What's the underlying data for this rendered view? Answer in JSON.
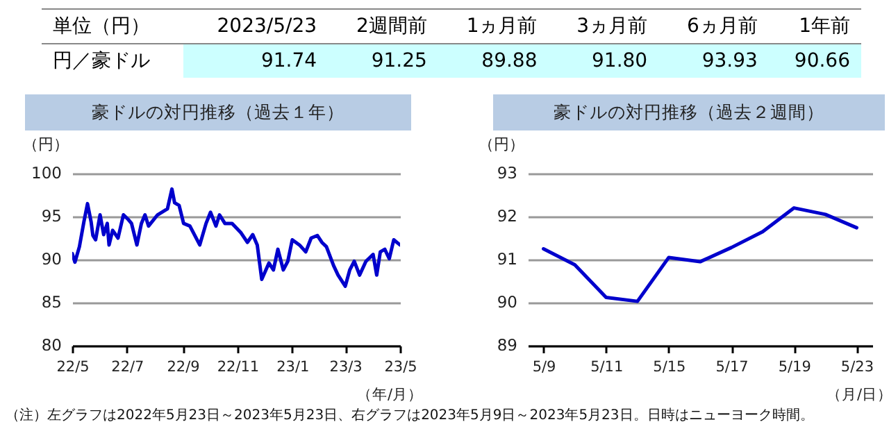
{
  "chart_data": [
    {
      "type": "other",
      "xlabel": "単位（円）",
      "ylabel": "円／豪ドル",
      "categories": [
        "2023/5/23",
        "2週間前",
        "1ヵ月前",
        "3ヵ月前",
        "6ヵ月前",
        "1年前"
      ],
      "value_labels": [
        "91.74",
        "91.25",
        "89.88",
        "91.80",
        "93.93",
        "90.66"
      ]
    },
    {
      "type": "line",
      "title": "豪ドルの対円推移（過去１年）",
      "ylabel": "（円）",
      "xlabel": "（年/月）",
      "x": [
        "2022-05-23",
        "2022-05-26",
        "2022-05-31",
        "2022-06-05",
        "2022-06-09",
        "2022-06-13",
        "2022-06-15",
        "2022-06-18",
        "2022-06-23",
        "2022-06-27",
        "2022-07-01",
        "2022-07-03",
        "2022-07-07",
        "2022-07-13",
        "2022-07-19",
        "2022-07-24",
        "2022-07-28",
        "2022-08-03",
        "2022-08-08",
        "2022-08-12",
        "2022-08-16",
        "2022-08-26",
        "2022-09-06",
        "2022-09-11",
        "2022-09-14",
        "2022-09-19",
        "2022-09-24",
        "2022-10-01",
        "2022-10-12",
        "2022-10-19",
        "2022-10-24",
        "2022-10-30",
        "2022-11-03",
        "2022-11-09",
        "2022-11-17",
        "2022-11-27",
        "2022-12-04",
        "2022-12-10",
        "2022-12-15",
        "2022-12-20",
        "2022-12-28",
        "2023-01-02",
        "2023-01-07",
        "2023-01-13",
        "2023-01-18",
        "2023-01-23",
        "2023-01-31",
        "2023-02-07",
        "2023-02-13",
        "2023-02-20",
        "2023-02-25",
        "2023-03-02",
        "2023-03-10",
        "2023-03-15",
        "2023-03-23",
        "2023-03-28",
        "2023-04-02",
        "2023-04-08",
        "2023-04-15",
        "2023-04-23",
        "2023-04-27",
        "2023-05-01",
        "2023-05-06",
        "2023-05-11",
        "2023-05-16",
        "2023-05-23"
      ],
      "series": [
        {
          "color": "#0000cc",
          "values": [
            90.7,
            89.7,
            91.5,
            94.4,
            96.5,
            94.4,
            92.8,
            92.3,
            95.2,
            92.9,
            94.2,
            91.7,
            93.4,
            92.5,
            95.2,
            94.7,
            94.2,
            91.7,
            94.2,
            95.2,
            93.9,
            95.2,
            95.9,
            98.2,
            96.6,
            96.3,
            94.2,
            93.9,
            91.7,
            94.2,
            95.5,
            93.9,
            95.2,
            94.2,
            94.2,
            93.1,
            92.0,
            92.9,
            91.7,
            87.7,
            89.6,
            88.8,
            91.2,
            88.8,
            89.8,
            92.3,
            91.7,
            90.9,
            92.5,
            92.8,
            92.0,
            91.5,
            89.3,
            88.2,
            86.9,
            88.8,
            89.8,
            88.2,
            89.8,
            90.6,
            88.2,
            90.9,
            91.2,
            90.1,
            92.3,
            91.7
          ]
        }
      ],
      "xlim": [
        "2022-05-23",
        "2023-05-23"
      ],
      "xticks": [
        {
          "value": "2022-05-23",
          "label": "22/5"
        },
        {
          "value": "2022-07-23",
          "label": "22/7"
        },
        {
          "value": "2022-09-23",
          "label": "22/9"
        },
        {
          "value": "2022-11-23",
          "label": "22/11"
        },
        {
          "value": "2023-01-23",
          "label": "23/1"
        },
        {
          "value": "2023-03-23",
          "label": "23/3"
        },
        {
          "value": "2023-05-23",
          "label": "23/5"
        }
      ],
      "ylim": [
        80,
        100
      ],
      "yticks": [
        80,
        85,
        90,
        95,
        100
      ],
      "grid": "y"
    },
    {
      "type": "line",
      "title": "豪ドルの対円推移（過去２週間）",
      "ylabel": "（円）",
      "xlabel": "（月/日）",
      "categories": [
        "5/9",
        null,
        "5/11",
        null,
        "5/15",
        null,
        "5/17",
        null,
        "5/19",
        null,
        "5/23"
      ],
      "series": [
        {
          "color": "#0000cc",
          "values": [
            91.25,
            90.88,
            90.12,
            90.03,
            91.05,
            90.95,
            91.28,
            91.65,
            92.2,
            92.05,
            91.74
          ]
        }
      ],
      "ylim": [
        89,
        93
      ],
      "yticks": [
        89,
        90,
        91,
        92,
        93
      ],
      "grid": "y",
      "annotations": [
        "（注）左グラフは2022年5月23日～2023年5月23日、右グラフは2023年5月9日～2023年5月23日。日時はニューヨーク時間。"
      ]
    }
  ]
}
